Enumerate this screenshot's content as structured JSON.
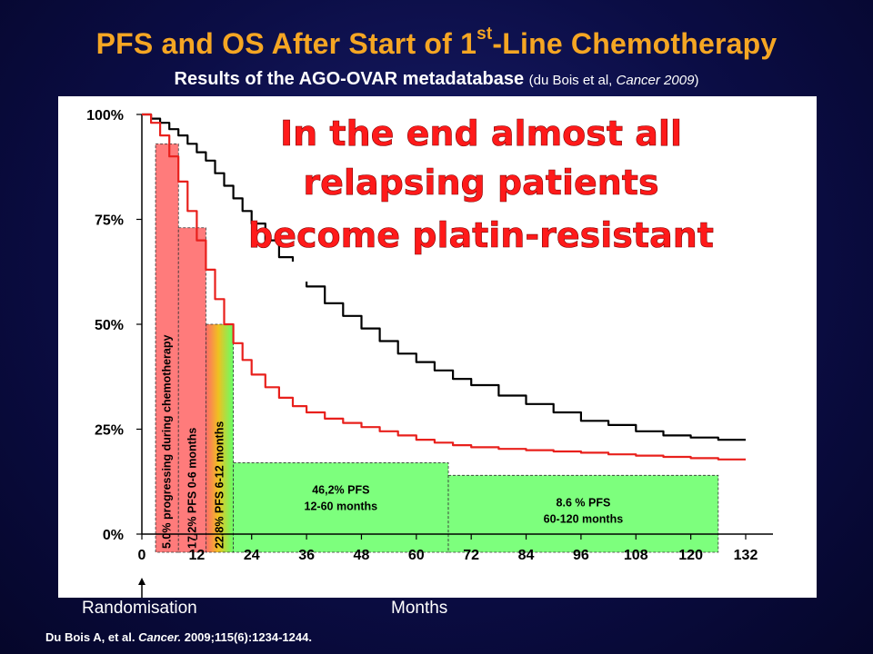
{
  "header": {
    "title_main": "PFS and OS After Start of 1",
    "title_sup": "st",
    "title_end": "-Line Chemotherapy",
    "subtitle": "Results of the AGO-OVAR metadatabase",
    "subtitle_ref_pre": "(du Bois et al,",
    "subtitle_ref_italic": "Cancer 2009",
    "subtitle_ref_post": ")"
  },
  "annotation": {
    "lines": [
      "In the end almost all",
      "relapsing patients",
      "become platin-resistant"
    ]
  },
  "footer": {
    "randomisation_label": "Randomisation",
    "xlabel": "Months",
    "citation_pre": "Du Bois A, et al.",
    "citation_italic": "Cancer.",
    "citation_post": "2009;115(6):1234-1244."
  },
  "chart_data": {
    "type": "line",
    "title": "PFS and OS After Start of 1st-Line Chemotherapy",
    "xlabel": "Months",
    "ylabel": "",
    "xlim": [
      0,
      132
    ],
    "ylim": [
      0,
      100
    ],
    "x_ticks": [
      0,
      12,
      24,
      36,
      48,
      60,
      72,
      84,
      96,
      108,
      120,
      132
    ],
    "y_ticks": [
      {
        "value": 0,
        "label": "0%"
      },
      {
        "value": 25,
        "label": "25%"
      },
      {
        "value": 50,
        "label": "50%"
      },
      {
        "value": 75,
        "label": "75%"
      },
      {
        "value": 100,
        "label": "100%"
      }
    ],
    "series": [
      {
        "color": "#000000",
        "x": [
          0,
          2,
          4,
          6,
          8,
          10,
          12,
          14,
          16,
          18,
          20,
          22,
          24,
          27,
          30,
          33,
          36,
          40,
          44,
          48,
          52,
          56,
          60,
          64,
          68,
          72,
          78,
          84,
          90,
          96,
          102,
          108,
          114,
          120,
          126,
          132
        ],
        "y": [
          100,
          99,
          98,
          96.5,
          95,
          93,
          91,
          89,
          86,
          83,
          80,
          77,
          74,
          70,
          66,
          62,
          59,
          55,
          52,
          49,
          46,
          43,
          41,
          39,
          37,
          35.5,
          33,
          31,
          29,
          27,
          26,
          24.5,
          23.5,
          23,
          22.5,
          22.5
        ]
      },
      {
        "color": "#e8201c",
        "x": [
          0,
          2,
          4,
          6,
          8,
          10,
          12,
          14,
          16,
          18,
          20,
          22,
          24,
          27,
          30,
          33,
          36,
          40,
          44,
          48,
          52,
          56,
          60,
          64,
          68,
          72,
          78,
          84,
          90,
          96,
          102,
          108,
          114,
          120,
          126,
          132
        ],
        "y": [
          100,
          98,
          95,
          90,
          84,
          77,
          70,
          63,
          56,
          50,
          45.5,
          41.5,
          38,
          35,
          32.5,
          30.5,
          29,
          27.5,
          26.5,
          25.5,
          24.5,
          23.5,
          22.5,
          21.8,
          21.2,
          20.7,
          20.3,
          20,
          19.7,
          19.4,
          19,
          18.7,
          18.4,
          18.1,
          17.8,
          17.8
        ]
      }
    ],
    "bars": [
      {
        "x0": 3,
        "x1": 8,
        "top": 93,
        "label": "5.0% progressing during chemotherapy",
        "fill": "red",
        "orientation": "vertical"
      },
      {
        "x0": 8,
        "x1": 14,
        "top": 73,
        "label": "17.2% PFS 0-6 months",
        "fill": "red",
        "orientation": "vertical"
      },
      {
        "x0": 14,
        "x1": 20,
        "top": 50,
        "label": "22.8% PFS 6-12 months",
        "fill": "red-green",
        "orientation": "vertical"
      },
      {
        "x0": 20,
        "x1": 67,
        "top": 17,
        "label_lines": [
          "46,2% PFS",
          "12-60 months"
        ],
        "fill": "green",
        "orientation": "horizontal"
      },
      {
        "x0": 67,
        "x1": 126,
        "top": 14,
        "label_lines": [
          "8.6 % PFS",
          "60-120 months"
        ],
        "fill": "green",
        "orientation": "horizontal"
      }
    ],
    "colors": {
      "os_line": "#000000",
      "pfs_line": "#e8201c",
      "bar_red": "#ff7b7b",
      "bar_green": "#7dff7d",
      "title": "#f5a623"
    },
    "grid": false,
    "legend": "none"
  }
}
